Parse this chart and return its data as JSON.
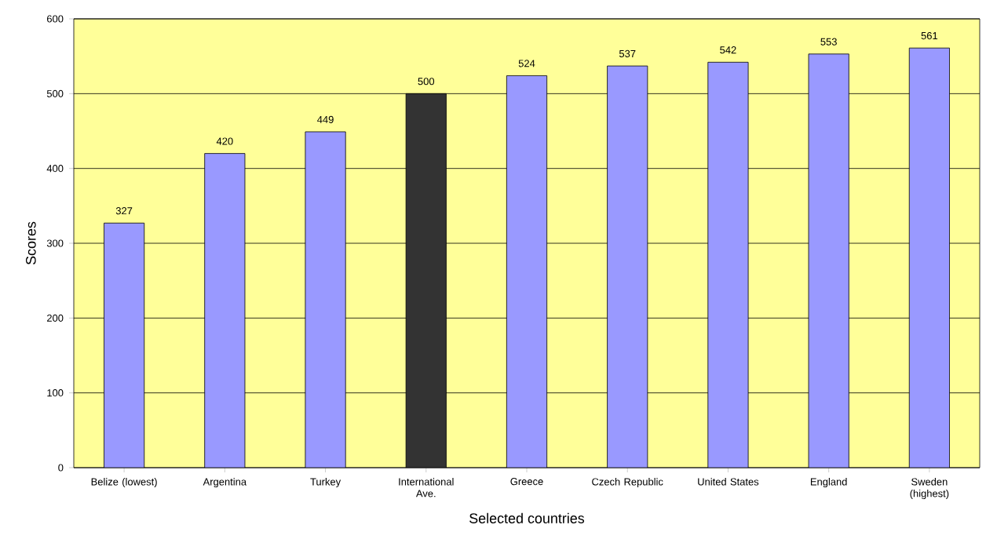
{
  "chart_data": {
    "type": "bar",
    "categories": [
      "Belize (lowest)",
      "Argentina",
      "Turkey",
      "International Ave.",
      "Greece",
      "Czech Republic",
      "United States",
      "England",
      "Sweden (highest)"
    ],
    "values": [
      327,
      420,
      449,
      500,
      524,
      537,
      542,
      553,
      561
    ],
    "colors": [
      "#9999ff",
      "#9999ff",
      "#9999ff",
      "#333333",
      "#9999ff",
      "#9999ff",
      "#9999ff",
      "#9999ff",
      "#9999ff"
    ],
    "xlabel": "Selected countries",
    "ylabel": "Scores",
    "ylim": [
      0,
      600
    ],
    "yticks": [
      0,
      100,
      200,
      300,
      400,
      500,
      600
    ],
    "grid": "y",
    "data_labels": true
  }
}
